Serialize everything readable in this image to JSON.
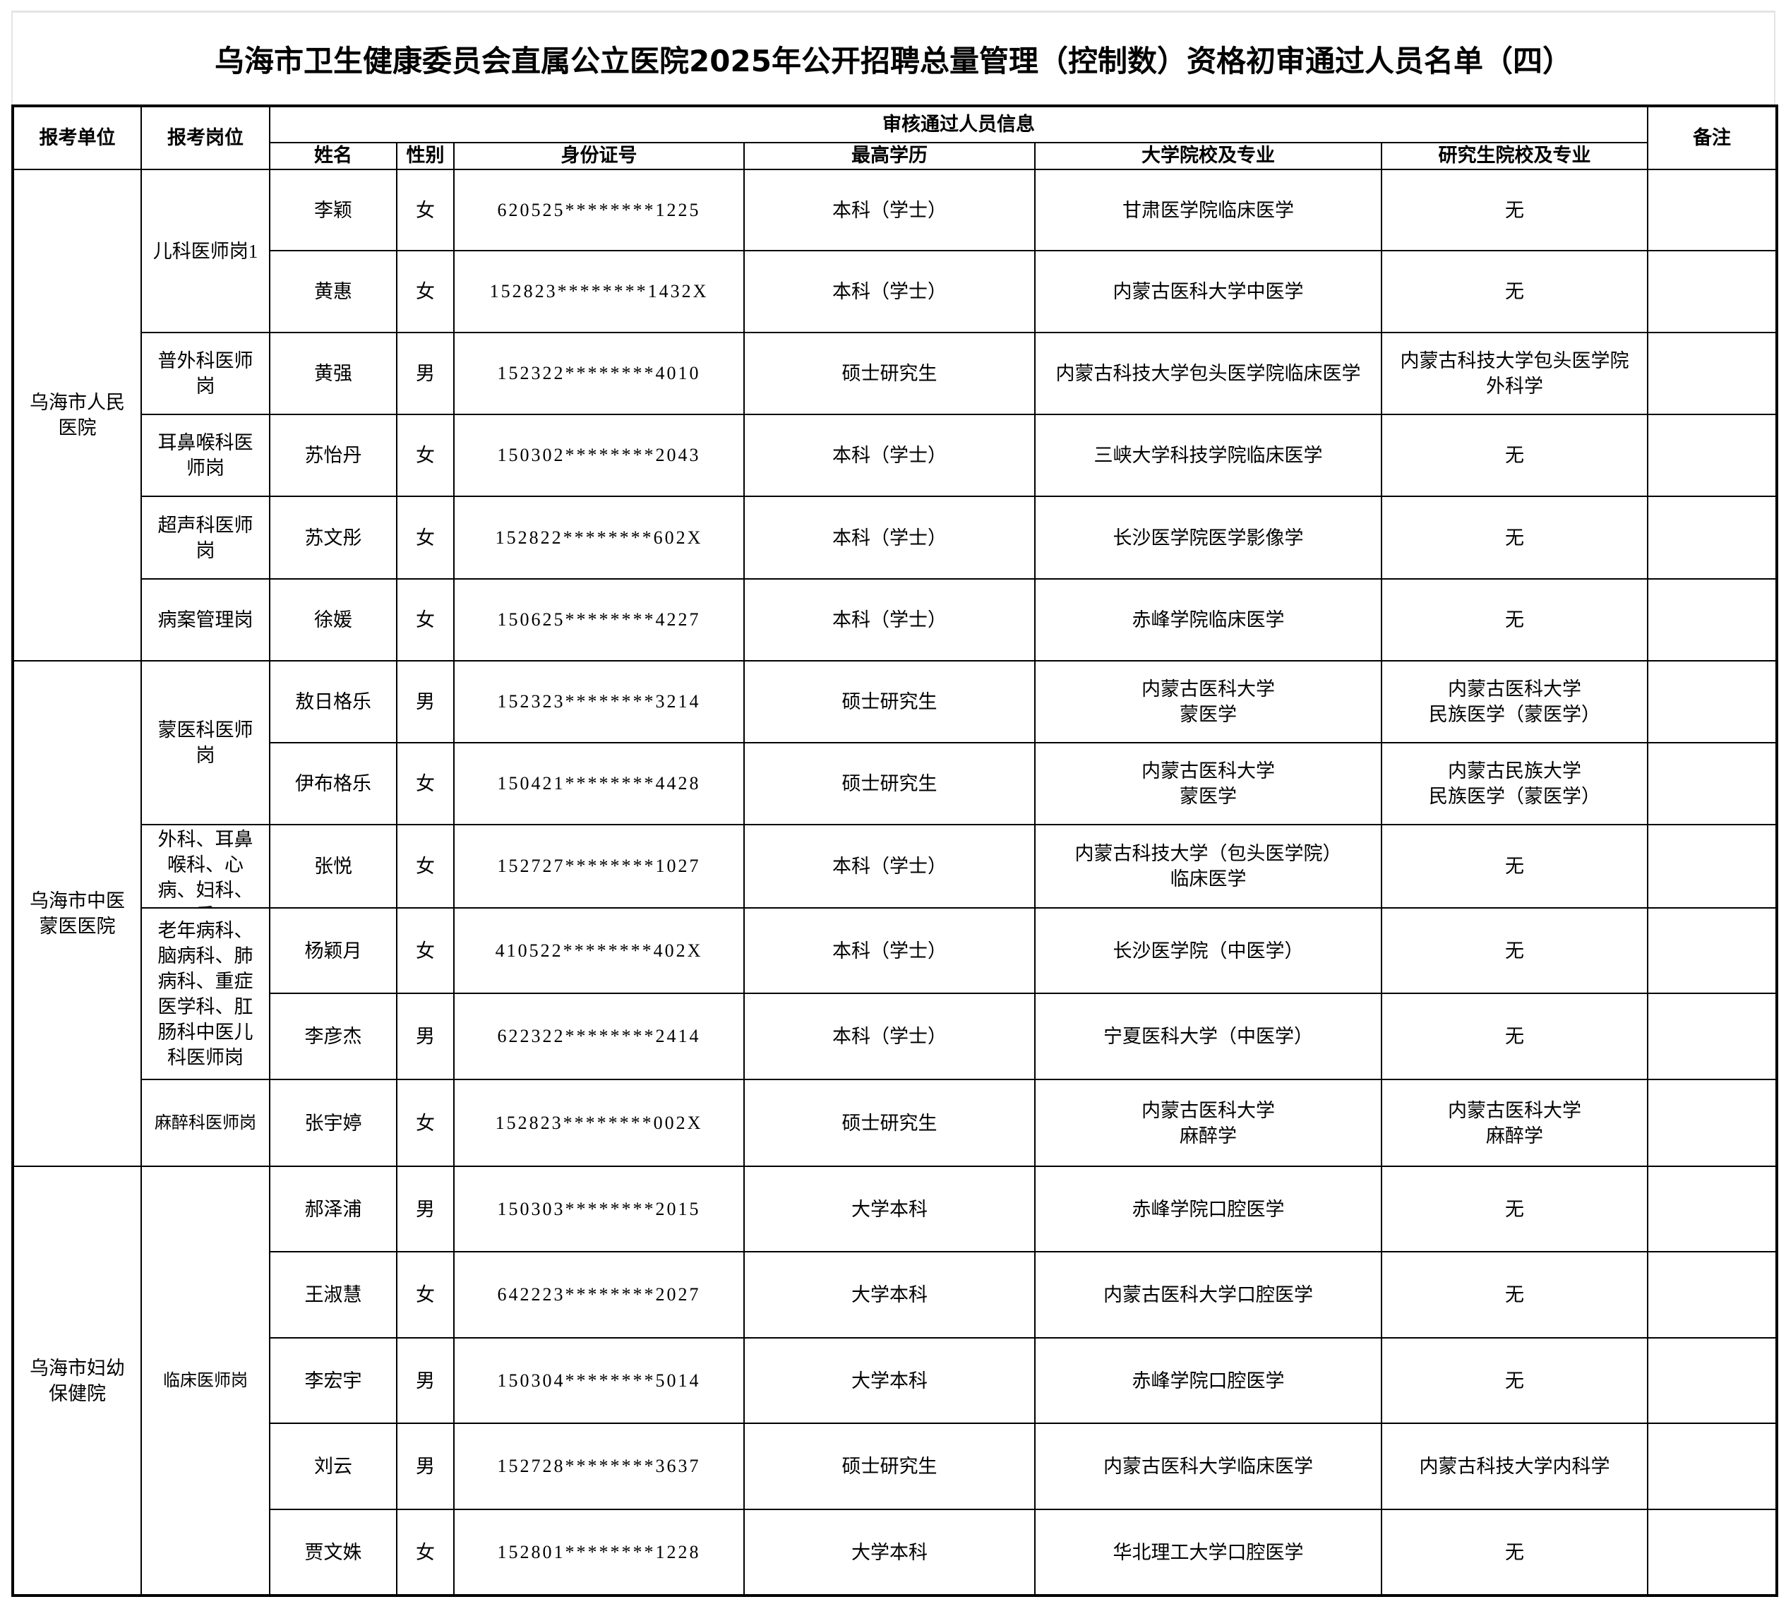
{
  "title": "乌海市卫生健康委员会直属公立医院2025年公开招聘总量管理（控制数）资格初审通过人员名单（四）",
  "headers": {
    "unit": "报考单位",
    "post": "报考岗位",
    "group": "审核通过人员信息",
    "name": "姓名",
    "gender": "性别",
    "id": "身份证号",
    "education": "最高学历",
    "university": "大学院校及专业",
    "graduate": "研究生院校及专业",
    "remark": "备注"
  },
  "units": [
    {
      "label": "乌海市人民医院",
      "span": 6
    },
    {
      "label": "乌海市中医蒙医医院",
      "span": 6
    },
    {
      "label": "乌海市妇幼保健院",
      "span": 5
    }
  ],
  "posts": [
    {
      "label": "儿科医师岗1",
      "span": 2
    },
    {
      "label": "普外科医师岗",
      "span": 1
    },
    {
      "label": "耳鼻喉科医师岗",
      "span": 1
    },
    {
      "label": "超声科医师岗",
      "span": 1
    },
    {
      "label": "病案管理岗",
      "span": 1
    },
    {
      "label": "蒙医科医师岗",
      "span": 2
    },
    {
      "label": "外科、耳鼻喉科、心病、妇科、重",
      "span": 1,
      "clipped": true
    },
    {
      "label": "老年病科、脑病科、肺病科、重症医学科、肛肠科中医儿科医师岗",
      "span": 2
    },
    {
      "label": "麻醉科医师岗",
      "span": 1,
      "small": true
    },
    {
      "label": "临床医师岗",
      "span": 5,
      "small": true
    }
  ],
  "rows": [
    {
      "name": "李颖",
      "gender": "女",
      "id": "620525********1225",
      "education": "本科（学士）",
      "university": "甘肃医学院临床医学",
      "graduate": "无",
      "remark": ""
    },
    {
      "name": "黄惠",
      "gender": "女",
      "id": "152823********1432X",
      "education": "本科（学士）",
      "university": "内蒙古医科大学中医学",
      "graduate": "无",
      "remark": ""
    },
    {
      "name": "黄强",
      "gender": "男",
      "id": "152322********4010",
      "education": "硕士研究生",
      "university": "内蒙古科技大学包头医学院临床医学",
      "graduate": "内蒙古科技大学包头医学院\n外科学",
      "remark": ""
    },
    {
      "name": "苏怡丹",
      "gender": "女",
      "id": "150302********2043",
      "education": "本科（学士）",
      "university": "三峡大学科技学院临床医学",
      "graduate": "无",
      "remark": ""
    },
    {
      "name": "苏文彤",
      "gender": "女",
      "id": "152822********602X",
      "education": "本科（学士）",
      "university": "长沙医学院医学影像学",
      "graduate": "无",
      "remark": ""
    },
    {
      "name": "徐媛",
      "gender": "女",
      "id": "150625********4227",
      "education": "本科（学士）",
      "university": "赤峰学院临床医学",
      "graduate": "无",
      "remark": ""
    },
    {
      "name": "敖日格乐",
      "gender": "男",
      "id": "152323********3214",
      "education": "硕士研究生",
      "university": "内蒙古医科大学\n蒙医学",
      "graduate": "内蒙古医科大学\n民族医学（蒙医学）",
      "remark": ""
    },
    {
      "name": "伊布格乐",
      "gender": "女",
      "id": "150421********4428",
      "education": "硕士研究生",
      "university": "内蒙古医科大学\n蒙医学",
      "graduate": "内蒙古民族大学\n民族医学（蒙医学）",
      "remark": ""
    },
    {
      "name": "张悦",
      "gender": "女",
      "id": "152727********1027",
      "education": "本科（学士）",
      "university": "内蒙古科技大学（包头医学院）\n临床医学",
      "graduate": "无",
      "remark": ""
    },
    {
      "name": "杨颖月",
      "gender": "女",
      "id": "410522********402X",
      "education": "本科（学士）",
      "university": "长沙医学院（中医学）",
      "graduate": "无",
      "remark": ""
    },
    {
      "name": "李彦杰",
      "gender": "男",
      "id": "622322********2414",
      "education": "本科（学士）",
      "university": "宁夏医科大学（中医学）",
      "graduate": "无",
      "remark": ""
    },
    {
      "name": "张宇婷",
      "gender": "女",
      "id": "152823********002X",
      "education": "硕士研究生",
      "university": "内蒙古医科大学\n麻醉学",
      "graduate": "内蒙古医科大学\n麻醉学",
      "remark": ""
    },
    {
      "name": "郝泽浦",
      "gender": "男",
      "id": "150303********2015",
      "education": "大学本科",
      "university": "赤峰学院口腔医学",
      "graduate": "无",
      "remark": ""
    },
    {
      "name": "王淑慧",
      "gender": "女",
      "id": "642223********2027",
      "education": "大学本科",
      "university": "内蒙古医科大学口腔医学",
      "graduate": "无",
      "remark": ""
    },
    {
      "name": "李宏宇",
      "gender": "男",
      "id": "150304********5014",
      "education": "大学本科",
      "university": "赤峰学院口腔医学",
      "graduate": "无",
      "remark": ""
    },
    {
      "name": "刘云",
      "gender": "男",
      "id": "152728********3637",
      "education": "硕士研究生",
      "university": "内蒙古医科大学临床医学",
      "graduate": "内蒙古科技大学内科学",
      "remark": ""
    },
    {
      "name": "贾文姝",
      "gender": "女",
      "id": "152801********1228",
      "education": "大学本科",
      "university": "华北理工大学口腔医学",
      "graduate": "无",
      "remark": ""
    }
  ]
}
